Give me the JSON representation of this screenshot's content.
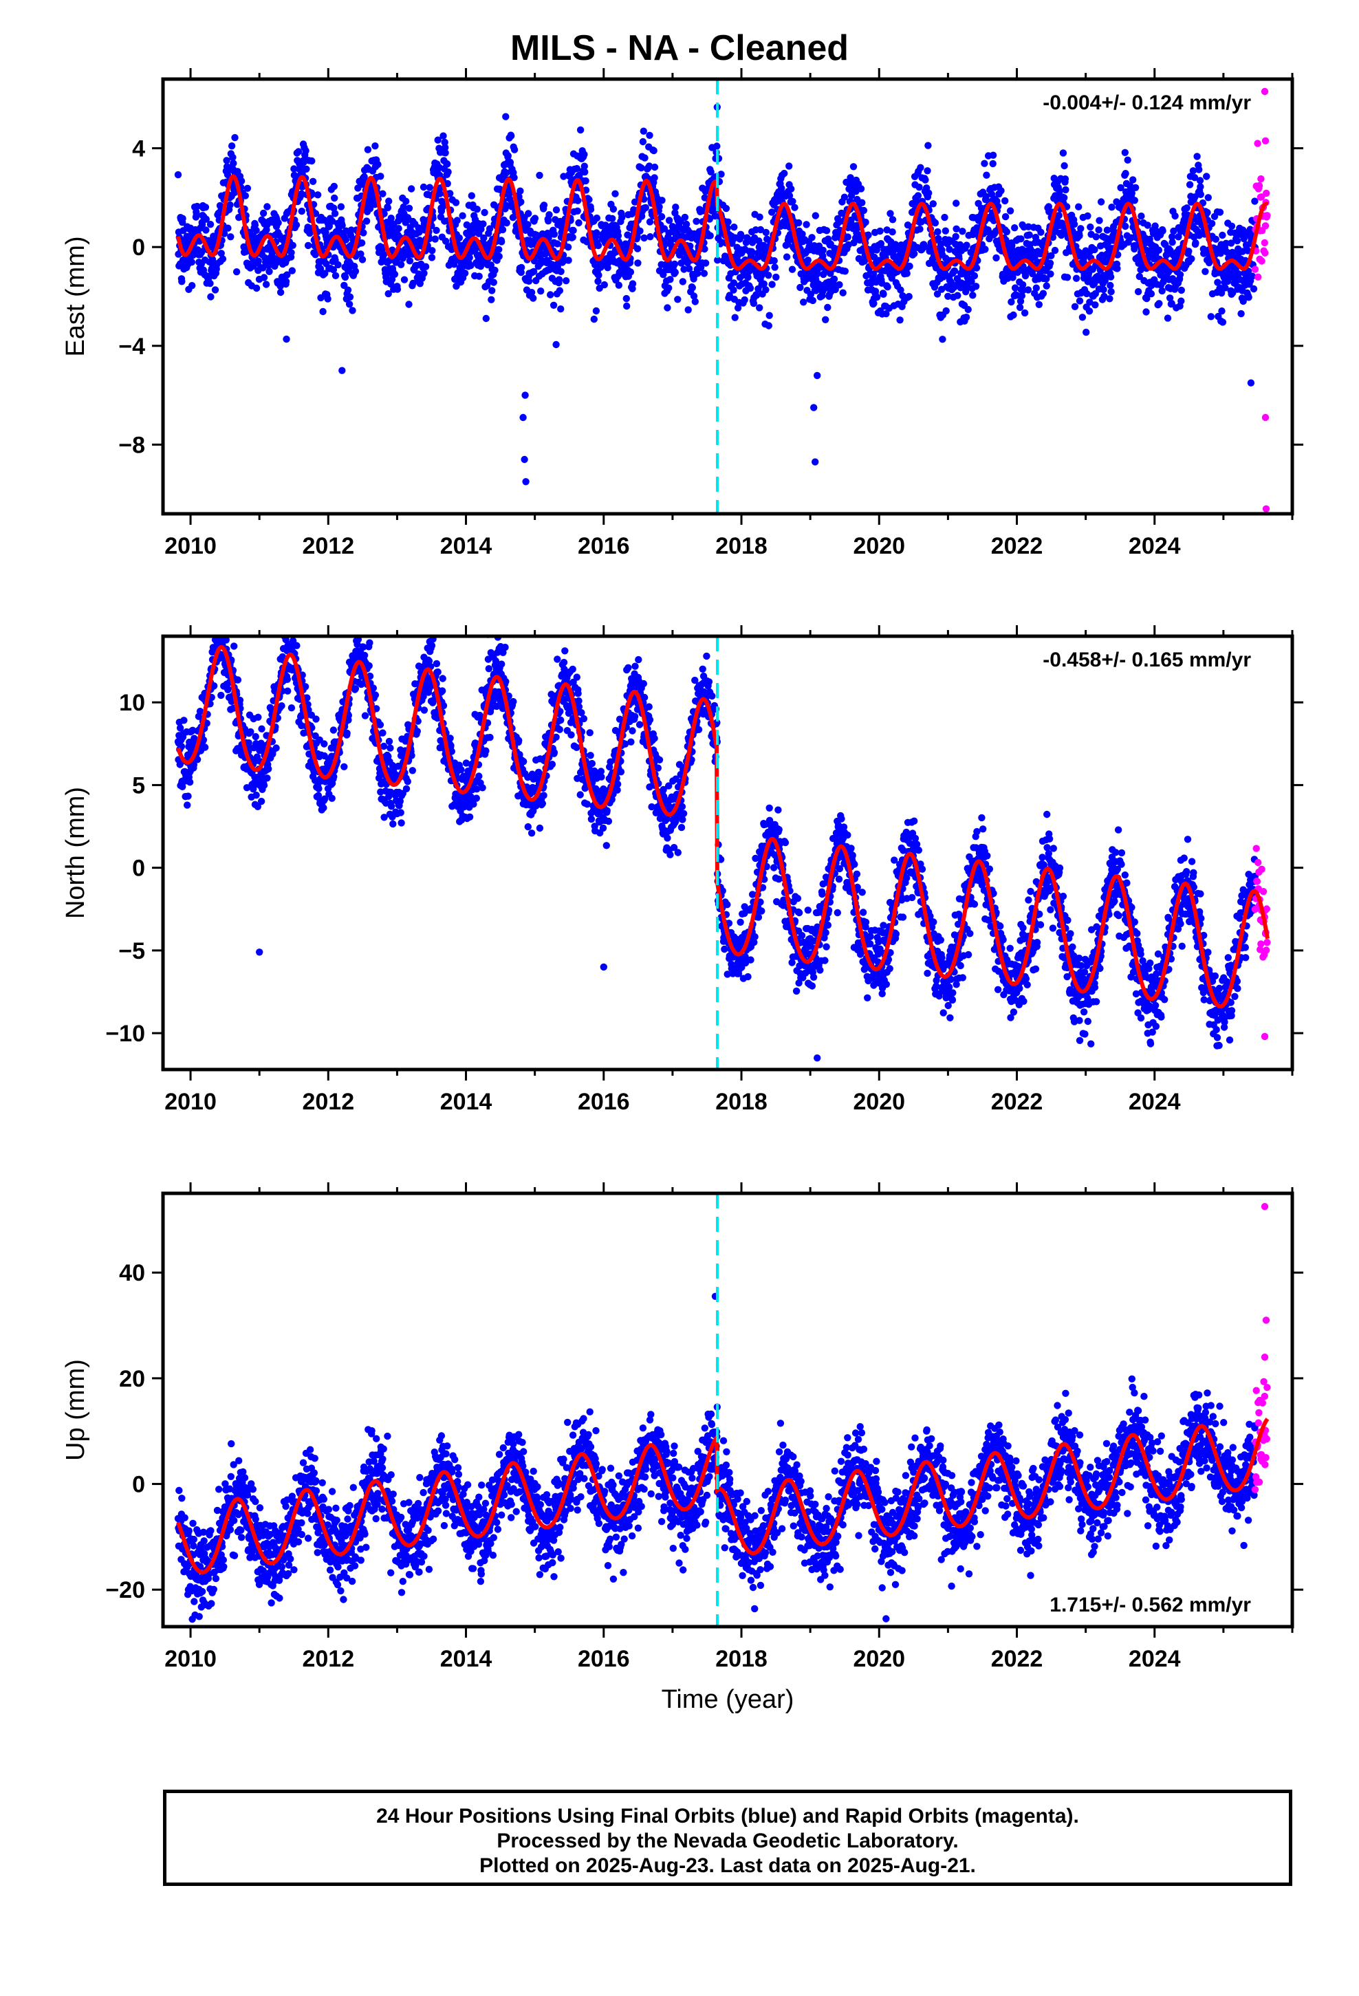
{
  "title": "MILS  - NA - Cleaned",
  "footer": {
    "line1": "24 Hour Positions Using Final Orbits (blue) and Rapid Orbits (magenta).",
    "line2": "Processed by the Nevada Geodetic Laboratory.",
    "line3": "Plotted on 2025-Aug-23. Last data on 2025-Aug-21."
  },
  "colors": {
    "final_orbits": "#0000ff",
    "rapid_orbits": "#ff00ff",
    "model_fit": "#ff0000",
    "equipment_change": "#00e5ee",
    "frame": "#000000"
  },
  "chart_data": [
    {
      "type": "scatter",
      "name": "east",
      "ylabel": "East (mm)",
      "xlabel": "",
      "xlim": [
        2009.6,
        2026.0
      ],
      "ylim": [
        -10.8,
        6.8
      ],
      "xticks": [
        2010,
        2012,
        2014,
        2016,
        2018,
        2020,
        2022,
        2024
      ],
      "yticks": [
        4,
        0,
        -4,
        -8
      ],
      "rate_label": "-0.004+/- 0.124 mm/yr",
      "rate_position": "top-right",
      "equipment_change_year": 2017.65,
      "data_start": 2009.82,
      "data_end": 2025.64,
      "rapid_start": 2025.46,
      "model": {
        "pre": {
          "offset": 0.55,
          "trend": -0.03,
          "annual_amp": 1.2,
          "annual_phase_year": 0.62,
          "semiannual_amp": 0.9
        },
        "post": {
          "offset": 0.0,
          "trend": 0.0,
          "annual_amp": 1.15,
          "annual_phase_year": 0.62,
          "semiannual_amp": 0.6
        },
        "scatter_sd": 0.9
      },
      "outliers": [
        [
          2014.85,
          -8.6
        ],
        [
          2014.87,
          -9.5
        ],
        [
          2014.83,
          -6.9
        ],
        [
          2014.86,
          -6.0
        ],
        [
          2019.05,
          -6.5
        ],
        [
          2019.07,
          -8.7
        ],
        [
          2019.1,
          -5.2
        ],
        [
          2012.2,
          -5.0
        ],
        [
          2025.4,
          -5.5
        ],
        [
          2025.61,
          -6.9
        ],
        [
          2025.62,
          -10.6
        ],
        [
          2025.6,
          6.3
        ],
        [
          2025.61,
          4.3
        ]
      ]
    },
    {
      "type": "scatter",
      "name": "north",
      "ylabel": "North (mm)",
      "xlabel": "",
      "xlim": [
        2009.6,
        2026.0
      ],
      "ylim": [
        -12.2,
        14.0
      ],
      "xticks": [
        2010,
        2012,
        2014,
        2016,
        2018,
        2020,
        2022,
        2024
      ],
      "yticks": [
        10,
        5,
        0,
        -5,
        -10
      ],
      "rate_label": "-0.458+/- 0.165 mm/yr",
      "rate_position": "top-right",
      "equipment_change_year": 2017.65,
      "data_start": 2009.82,
      "data_end": 2025.64,
      "rapid_start": 2025.46,
      "model": {
        "pre": {
          "offset": 6.2,
          "trend": -0.45,
          "annual_amp": 3.6,
          "annual_phase_year": 0.45,
          "semiannual_amp": 0.3
        },
        "post": {
          "offset": -1.8,
          "trend": -0.45,
          "annual_amp": 3.6,
          "annual_phase_year": 0.45,
          "semiannual_amp": 0.3
        },
        "scatter_sd": 1.1
      },
      "outliers": [
        [
          2012.6,
          13.6
        ],
        [
          2019.1,
          -11.5
        ],
        [
          2016.0,
          -6.0
        ],
        [
          2025.6,
          -10.2
        ],
        [
          2011.0,
          -5.1
        ]
      ]
    },
    {
      "type": "scatter",
      "name": "up",
      "ylabel": "Up (mm)",
      "xlabel": "Time (year)",
      "xlim": [
        2009.6,
        2026.0
      ],
      "ylim": [
        -27.0,
        55.0
      ],
      "xticks": [
        2010,
        2012,
        2014,
        2016,
        2018,
        2020,
        2022,
        2024
      ],
      "yticks": [
        40,
        20,
        0,
        -20
      ],
      "rate_label": "1.715+/- 0.562 mm/yr",
      "rate_position": "bottom-right",
      "equipment_change_year": 2017.65,
      "data_start": 2009.82,
      "data_end": 2025.64,
      "rapid_start": 2025.46,
      "model": {
        "pre": {
          "offset": 2.0,
          "trend": 1.7,
          "annual_amp": 6.5,
          "annual_phase_year": 0.68,
          "semiannual_amp": 0.5
        },
        "post": {
          "offset": -8.0,
          "trend": 1.7,
          "annual_amp": 6.5,
          "annual_phase_year": 0.68,
          "semiannual_amp": 0.5
        },
        "scatter_sd": 3.9
      },
      "outliers": [
        [
          2017.62,
          35.5
        ],
        [
          2025.6,
          52.5
        ],
        [
          2025.62,
          31.0
        ],
        [
          2025.6,
          24.0
        ],
        [
          2020.1,
          -25.5
        ],
        [
          2010.2,
          -22.5
        ]
      ]
    }
  ]
}
